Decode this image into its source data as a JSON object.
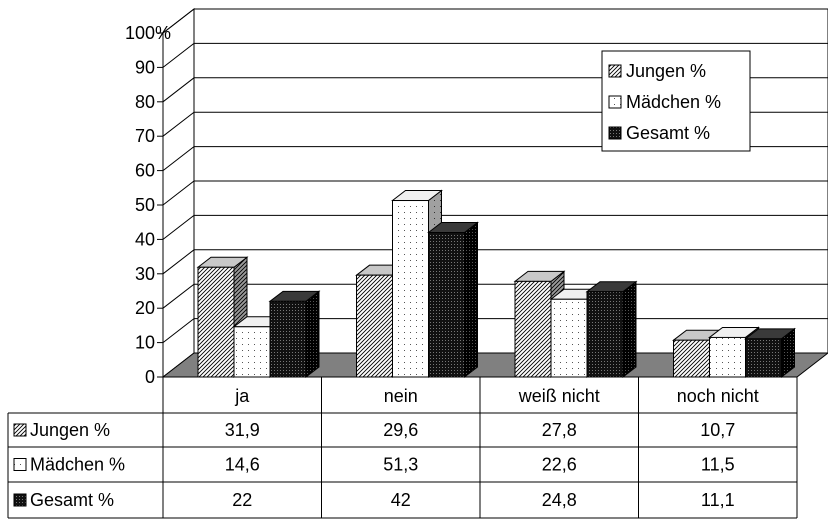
{
  "chart_data": {
    "type": "bar",
    "categories": [
      "ja",
      "nein",
      "weiß nicht",
      "noch nicht"
    ],
    "series": [
      {
        "name": "Jungen %",
        "values": [
          31.9,
          29.6,
          27.8,
          10.7
        ],
        "display": [
          "31,9",
          "29,6",
          "27,8",
          "10,7"
        ],
        "pattern": "diagonal-hatch"
      },
      {
        "name": "Mädchen %",
        "values": [
          14.6,
          51.3,
          22.6,
          11.5
        ],
        "display": [
          "14,6",
          "51,3",
          "22,6",
          "11,5"
        ],
        "pattern": "sparse-dots"
      },
      {
        "name": "Gesamt %",
        "values": [
          22,
          42,
          24.8,
          11.1
        ],
        "display": [
          "22",
          "42",
          "24,8",
          "11,1"
        ],
        "pattern": "dense-dots"
      }
    ],
    "ylim": [
      0,
      100
    ],
    "yticks": [
      "0",
      "10",
      "20",
      "30",
      "40",
      "50",
      "60",
      "70",
      "80",
      "90",
      "100%"
    ],
    "grid": true,
    "legend_position": "top-right",
    "data_table": true,
    "style": "3d-clustered-column"
  },
  "colors": {
    "wall": "#ffffff",
    "floor": "#808080",
    "grid": "#000000",
    "dark_face": "#1a1a1a"
  }
}
